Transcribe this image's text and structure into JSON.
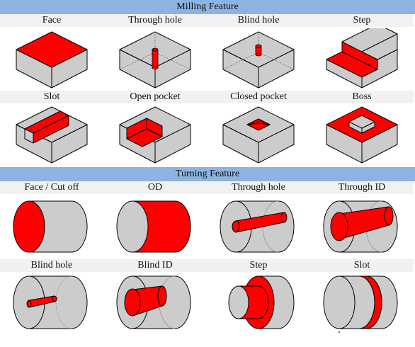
{
  "sections": [
    {
      "title": "Milling Feature",
      "features": [
        "Face",
        "Through hole",
        "Blind hole",
        "Step",
        "Slot",
        "Open pocket",
        "Closed pocket",
        "Boss"
      ]
    },
    {
      "title": "Turning Feature",
      "features": [
        "Face / Cut off",
        "OD",
        "Through hole",
        "Through ID",
        "Blind hole",
        "Blind ID",
        "Step",
        "Slot"
      ]
    }
  ],
  "colors": {
    "header": "#8db3e2",
    "label_band": "#f1f1f1",
    "body": "#cccccc",
    "feature": "#ff0000",
    "outline": "#000000"
  }
}
